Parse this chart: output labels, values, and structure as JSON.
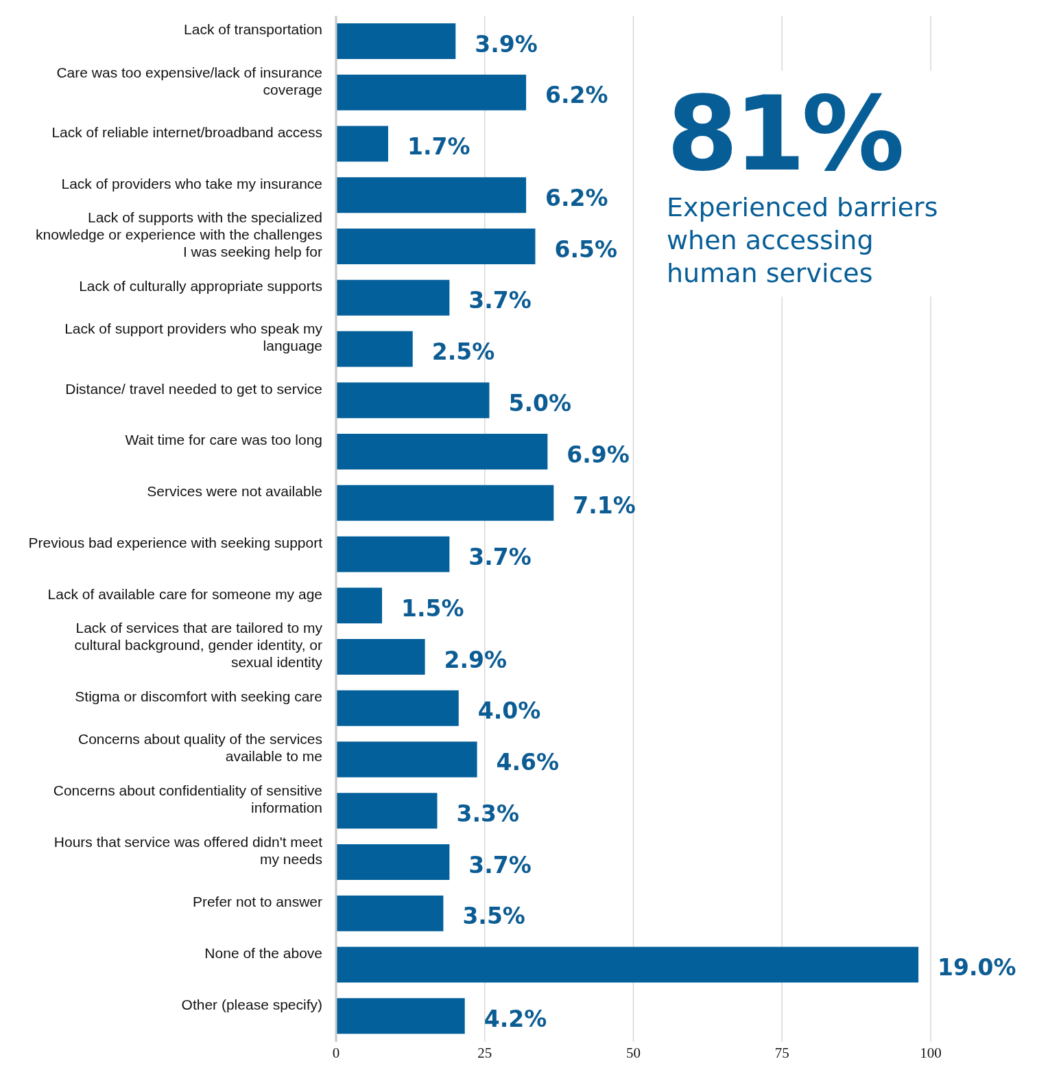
{
  "chart_data": {
    "type": "bar",
    "orientation": "horizontal",
    "categories": [
      "Lack of transportation",
      "Care was too expensive/lack of insurance coverage",
      "Lack of reliable internet/broadband access",
      "Lack of providers who take my insurance",
      "Lack of supports with the specialized knowledge or experience with the challenges I was seeking help for",
      "Lack of culturally appropriate supports",
      "Lack of support providers who speak my language",
      "Distance/ travel needed to get to service",
      "Wait time for care was too long",
      "Services were not available",
      "Previous bad experience with seeking support",
      "Lack of available care for someone my age",
      "Lack of services that are tailored to my cultural background, gender identity, or sexual identity",
      "Stigma or discomfort with seeking care",
      "Concerns about quality of the services available to me",
      "Concerns about confidentiality of sensitive information",
      "Hours that service was offered didn't meet my needs",
      "Prefer not to answer",
      "None of the above",
      "Other (please specify)"
    ],
    "values": [
      3.9,
      6.2,
      1.7,
      6.2,
      6.5,
      3.7,
      2.5,
      5.0,
      6.9,
      7.1,
      3.7,
      1.5,
      2.9,
      4.0,
      4.6,
      3.3,
      3.7,
      3.5,
      19.0,
      4.2
    ],
    "value_labels": [
      "3.9%",
      "6.2%",
      "1.7%",
      "6.2%",
      "6.5%",
      "3.7%",
      "2.5%",
      "5.0%",
      "6.9%",
      "7.1%",
      "3.7%",
      "1.5%",
      "2.9%",
      "4.0%",
      "4.6%",
      "3.3%",
      "3.7%",
      "3.5%",
      "19.0%",
      "4.2%"
    ],
    "color": "#03609a",
    "xlim": [
      0,
      19.4
    ],
    "x2lim": [
      0,
      100
    ],
    "x2ticks": [
      0,
      25,
      50,
      75,
      100
    ],
    "grid": "x",
    "annotations": [
      "81%",
      "Experienced barriers when accessing human services"
    ]
  }
}
